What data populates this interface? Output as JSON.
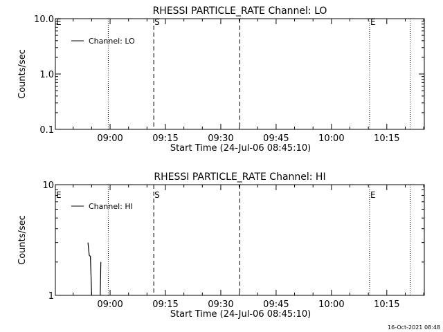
{
  "footer_timestamp": "16-Oct-2021 08:48",
  "chart_data": [
    {
      "type": "line",
      "title": "RHESSI PARTICLE_RATE Channel: LO",
      "xlabel": "Start Time (24-Jul-06 08:45:10)",
      "ylabel": "Counts/sec",
      "yscale": "log",
      "ylim": [
        0.1,
        10.0
      ],
      "yticks": [
        0.1,
        1.0,
        10.0
      ],
      "ytick_labels": [
        "0.1",
        "1.0",
        "10.0"
      ],
      "xlim": [
        "08:45:10",
        "10:25:10"
      ],
      "xticks": [
        "09:00",
        "09:15",
        "09:30",
        "09:45",
        "10:00",
        "10:15"
      ],
      "legend": {
        "position": "top-left",
        "entries": [
          "Channel: LO"
        ]
      },
      "markers": [
        {
          "time": "08:45:10",
          "style": "dotted",
          "label": "E"
        },
        {
          "time": "08:59:30",
          "style": "dotted",
          "label": ""
        },
        {
          "time": "09:11:50",
          "style": "dashed",
          "label": "S"
        },
        {
          "time": "09:35:10",
          "style": "dashed",
          "label": ""
        },
        {
          "time": "10:10:20",
          "style": "dotted",
          "label": "E"
        },
        {
          "time": "10:21:20",
          "style": "dotted",
          "label": ""
        }
      ],
      "series": [
        {
          "name": "Channel: LO",
          "color": "#000000",
          "segments": []
        }
      ]
    },
    {
      "type": "line",
      "title": "RHESSI PARTICLE_RATE Channel: HI",
      "xlabel": "Start Time (24-Jul-06 08:45:10)",
      "ylabel": "Counts/sec",
      "yscale": "log",
      "ylim": [
        1,
        10
      ],
      "yticks": [
        1,
        10
      ],
      "ytick_labels": [
        "1",
        "10"
      ],
      "xlim": [
        "08:45:10",
        "10:25:10"
      ],
      "xticks": [
        "09:00",
        "09:15",
        "09:30",
        "09:45",
        "10:00",
        "10:15"
      ],
      "legend": {
        "position": "top-left",
        "entries": [
          "Channel: HI"
        ]
      },
      "markers": [
        {
          "time": "08:45:10",
          "style": "dotted",
          "label": "E"
        },
        {
          "time": "08:59:30",
          "style": "dotted",
          "label": ""
        },
        {
          "time": "09:11:50",
          "style": "dashed",
          "label": "S"
        },
        {
          "time": "09:35:10",
          "style": "dashed",
          "label": ""
        },
        {
          "time": "10:10:20",
          "style": "dotted",
          "label": "E"
        },
        {
          "time": "10:21:20",
          "style": "dotted",
          "label": ""
        }
      ],
      "series": [
        {
          "name": "Channel: HI",
          "color": "#000000",
          "segments": [
            [
              [
                "08:54:00",
                3.0
              ],
              [
                "08:54:20",
                2.3
              ],
              [
                "08:54:40",
                2.25
              ],
              [
                "08:55:00",
                1.0
              ]
            ],
            [
              [
                "08:57:20",
                1.0
              ],
              [
                "08:57:30",
                2.0
              ]
            ]
          ]
        }
      ]
    }
  ]
}
